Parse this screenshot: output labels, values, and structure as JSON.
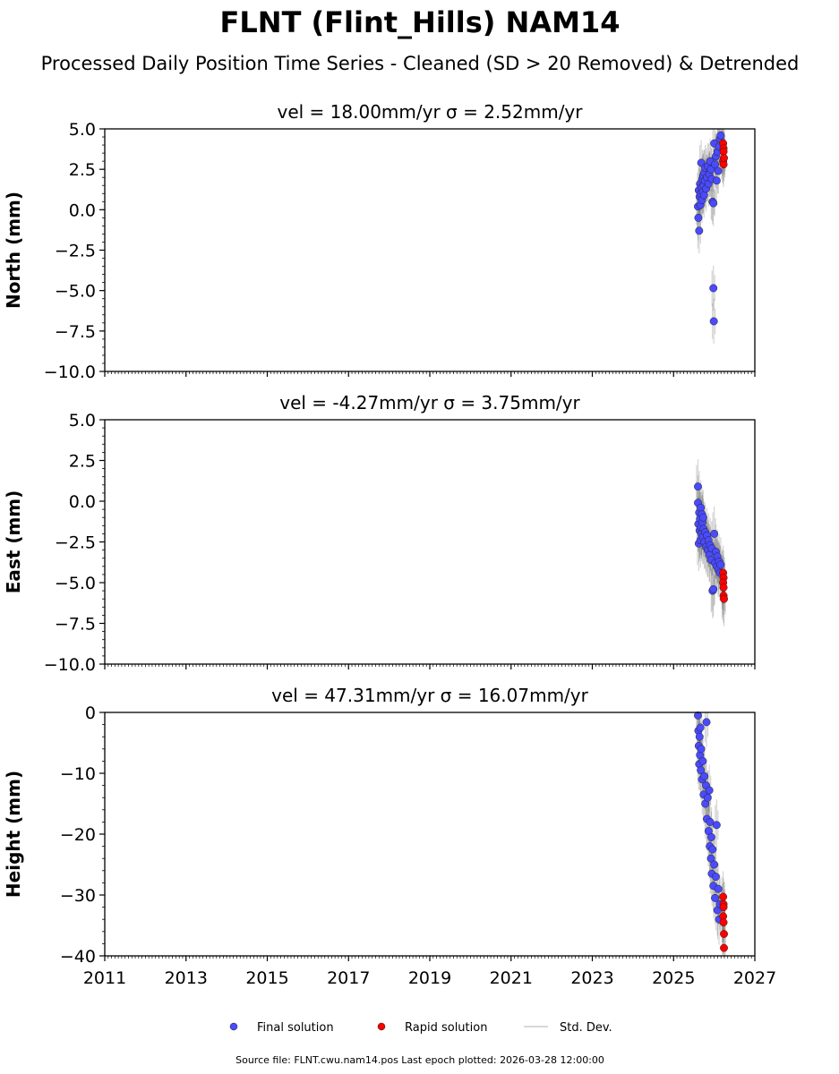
{
  "title": "FLNT (Flint_Hills) NAM14",
  "subtitle": "Processed Daily Position Time Series - Cleaned (SD > 20 Removed) & Detrended",
  "footer": "Source file: FLNT.cwu.nam14.pos  Last epoch plotted: 2026-03-28 12:00:00",
  "colors": {
    "final": "#4a4aff",
    "rapid": "#ff0000",
    "sd": "#bbbbbb"
  },
  "chart_data": [
    {
      "type": "scatter",
      "title": "vel = 18.00mm/yr   σ = 2.52mm/yr",
      "ylabel": "North (mm)",
      "xlim": [
        2011,
        2027
      ],
      "ylim": [
        -10,
        5
      ],
      "yticks": [
        5,
        2.5,
        0,
        -2.5,
        -5,
        -7.5,
        -10
      ],
      "ytick_labels": [
        "5.0",
        "2.5",
        "0.0",
        "−2.5",
        "−5.0",
        "−7.5",
        "−10.0"
      ],
      "sd_mm": 1.0,
      "final": [
        [
          2025.6,
          0.2
        ],
        [
          2025.61,
          -0.5
        ],
        [
          2025.62,
          1.2
        ],
        [
          2025.63,
          -1.3
        ],
        [
          2025.64,
          0.8
        ],
        [
          2025.65,
          1.6
        ],
        [
          2025.66,
          0.3
        ],
        [
          2025.67,
          1.0
        ],
        [
          2025.68,
          2.9
        ],
        [
          2025.69,
          1.4
        ],
        [
          2025.7,
          0.6
        ],
        [
          2025.71,
          1.9
        ],
        [
          2025.72,
          1.1
        ],
        [
          2025.73,
          2.1
        ],
        [
          2025.74,
          1.5
        ],
        [
          2025.75,
          0.9
        ],
        [
          2025.76,
          2.3
        ],
        [
          2025.77,
          1.8
        ],
        [
          2025.78,
          2.6
        ],
        [
          2025.8,
          1.3
        ],
        [
          2025.82,
          2.0
        ],
        [
          2025.84,
          2.7
        ],
        [
          2025.86,
          1.6
        ],
        [
          2025.88,
          2.2
        ],
        [
          2025.9,
          3.0
        ],
        [
          2025.92,
          2.5
        ],
        [
          2025.94,
          1.9
        ],
        [
          2025.96,
          0.5
        ],
        [
          2025.98,
          0.4
        ],
        [
          2025.98,
          -4.85
        ],
        [
          2025.99,
          -6.9
        ],
        [
          2026.0,
          4.1
        ],
        [
          2026.02,
          2.8
        ],
        [
          2026.04,
          3.3
        ],
        [
          2026.06,
          1.8
        ],
        [
          2026.08,
          3.6
        ],
        [
          2026.1,
          2.4
        ],
        [
          2026.12,
          3.9
        ],
        [
          2026.14,
          4.4
        ],
        [
          2026.16,
          4.6
        ]
      ],
      "rapid": [
        [
          2026.22,
          4.1
        ],
        [
          2026.23,
          3.8
        ],
        [
          2026.23,
          3.6
        ],
        [
          2026.22,
          3.0
        ],
        [
          2026.23,
          2.8
        ],
        [
          2026.24,
          3.2
        ]
      ]
    },
    {
      "type": "scatter",
      "title": "vel = -4.27mm/yr   σ = 3.75mm/yr",
      "ylabel": "East (mm)",
      "xlim": [
        2011,
        2027
      ],
      "ylim": [
        -10,
        5
      ],
      "yticks": [
        5,
        2.5,
        0,
        -2.5,
        -5,
        -7.5,
        -10
      ],
      "ytick_labels": [
        "5.0",
        "2.5",
        "0.0",
        "−2.5",
        "−5.0",
        "−7.5",
        "−10.0"
      ],
      "sd_mm": 1.2,
      "final": [
        [
          2025.6,
          0.9
        ],
        [
          2025.6,
          -0.1
        ],
        [
          2025.61,
          -1.4
        ],
        [
          2025.62,
          -2.6
        ],
        [
          2025.63,
          -0.7
        ],
        [
          2025.64,
          -1.8
        ],
        [
          2025.65,
          -1.1
        ],
        [
          2025.66,
          -2.4
        ],
        [
          2025.67,
          -0.4
        ],
        [
          2025.68,
          -1.6
        ],
        [
          2025.69,
          -2.0
        ],
        [
          2025.7,
          -0.8
        ],
        [
          2025.71,
          -1.3
        ],
        [
          2025.72,
          -2.2
        ],
        [
          2025.73,
          -1.0
        ],
        [
          2025.74,
          -1.7
        ],
        [
          2025.76,
          -2.5
        ],
        [
          2025.78,
          -1.9
        ],
        [
          2025.8,
          -2.8
        ],
        [
          2025.82,
          -2.1
        ],
        [
          2025.84,
          -3.0
        ],
        [
          2025.86,
          -2.4
        ],
        [
          2025.88,
          -3.3
        ],
        [
          2025.9,
          -2.7
        ],
        [
          2025.92,
          -3.6
        ],
        [
          2025.94,
          -2.9
        ],
        [
          2025.96,
          -5.5
        ],
        [
          2025.98,
          -5.4
        ],
        [
          2026.0,
          -2.0
        ],
        [
          2026.02,
          -3.8
        ],
        [
          2026.04,
          -3.1
        ],
        [
          2026.06,
          -4.0
        ],
        [
          2026.08,
          -3.4
        ],
        [
          2026.1,
          -4.2
        ],
        [
          2026.12,
          -3.7
        ],
        [
          2026.14,
          -4.4
        ],
        [
          2026.16,
          -3.9
        ]
      ],
      "rapid": [
        [
          2026.22,
          -4.4
        ],
        [
          2026.23,
          -4.7
        ],
        [
          2026.22,
          -5.0
        ],
        [
          2026.23,
          -5.3
        ],
        [
          2026.23,
          -5.8
        ],
        [
          2026.24,
          -6.0
        ]
      ]
    },
    {
      "type": "scatter",
      "title": "vel = 47.31mm/yr   σ = 16.07mm/yr",
      "ylabel": "Height (mm)",
      "xlim": [
        2011,
        2027
      ],
      "ylim": [
        -40,
        0
      ],
      "yticks": [
        0,
        -10,
        -20,
        -30,
        -40
      ],
      "ytick_labels": [
        "0",
        "−10",
        "−20",
        "−30",
        "−40"
      ],
      "sd_mm": 3.0,
      "final": [
        [
          2025.6,
          -0.5
        ],
        [
          2025.61,
          -3.0
        ],
        [
          2025.62,
          -5.5
        ],
        [
          2025.63,
          -8.5
        ],
        [
          2025.64,
          -4.0
        ],
        [
          2025.65,
          -7.0
        ],
        [
          2025.66,
          -2.5
        ],
        [
          2025.67,
          -9.5
        ],
        [
          2025.68,
          -6.0
        ],
        [
          2025.7,
          -11.0
        ],
        [
          2025.72,
          -8.0
        ],
        [
          2025.74,
          -13.5
        ],
        [
          2025.76,
          -10.5
        ],
        [
          2025.78,
          -15.0
        ],
        [
          2025.8,
          -12.0
        ],
        [
          2025.81,
          -1.6
        ],
        [
          2025.82,
          -17.5
        ],
        [
          2025.84,
          -14.0
        ],
        [
          2025.86,
          -19.5
        ],
        [
          2025.88,
          -12.8
        ],
        [
          2025.89,
          -22.0
        ],
        [
          2025.9,
          -18.0
        ],
        [
          2025.92,
          -24.0
        ],
        [
          2025.93,
          -20.5
        ],
        [
          2025.94,
          -26.5
        ],
        [
          2025.96,
          -22.5
        ],
        [
          2025.98,
          -28.5
        ],
        [
          2026.0,
          -25.0
        ],
        [
          2026.02,
          -30.5
        ],
        [
          2026.04,
          -27.0
        ],
        [
          2026.06,
          -18.5
        ],
        [
          2026.08,
          -32.5
        ],
        [
          2026.1,
          -29.0
        ],
        [
          2026.12,
          -34.0
        ],
        [
          2026.14,
          -31.5
        ]
      ],
      "rapid": [
        [
          2026.22,
          -30.3
        ],
        [
          2026.23,
          -31.5
        ],
        [
          2026.23,
          -32.0
        ],
        [
          2026.22,
          -33.5
        ],
        [
          2026.23,
          -34.5
        ],
        [
          2026.24,
          -36.4
        ],
        [
          2026.24,
          -38.7
        ]
      ]
    }
  ],
  "xtick_labels": [
    "2011",
    "2013",
    "2015",
    "2017",
    "2019",
    "2021",
    "2023",
    "2025",
    "2027"
  ],
  "legend": {
    "final": "Final solution",
    "rapid": "Rapid solution",
    "sd": "Std. Dev.",
    "placement": "bottom-center"
  }
}
